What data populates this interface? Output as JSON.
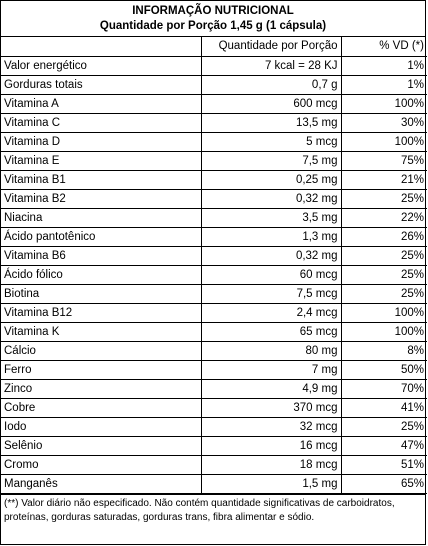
{
  "header": {
    "title": "INFORMAÇÃO NUTRICIONAL",
    "subtitle": "Quantidade por Porção 1,45 g (1 cápsula)"
  },
  "columns": [
    "",
    "Quantidade por Porção",
    "% VD (*)"
  ],
  "rows": [
    {
      "name": "Valor energético",
      "qty": "7 kcal = 28 KJ",
      "vd": "1%"
    },
    {
      "name": "Gorduras totais",
      "qty": "0,7 g",
      "vd": "1%"
    },
    {
      "name": "Vitamina A",
      "qty": "600 mcg",
      "vd": "100%"
    },
    {
      "name": "Vitamina C",
      "qty": "13,5 mg",
      "vd": "30%"
    },
    {
      "name": "Vitamina D",
      "qty": "5 mcg",
      "vd": "100%"
    },
    {
      "name": "Vitamina E",
      "qty": "7,5 mg",
      "vd": "75%"
    },
    {
      "name": "Vitamina B1",
      "qty": "0,25 mg",
      "vd": "21%"
    },
    {
      "name": "Vitamina B2",
      "qty": "0,32 mg",
      "vd": "25%"
    },
    {
      "name": "Niacina",
      "qty": "3,5 mg",
      "vd": "22%"
    },
    {
      "name": "Ácido pantotênico",
      "qty": "1,3 mg",
      "vd": "26%"
    },
    {
      "name": "Vitamina B6",
      "qty": "0,32 mg",
      "vd": "25%"
    },
    {
      "name": "Ácido fólico",
      "qty": "60 mcg",
      "vd": "25%"
    },
    {
      "name": "Biotina",
      "qty": "7,5 mcg",
      "vd": "25%"
    },
    {
      "name": "Vitamina B12",
      "qty": "2,4 mcg",
      "vd": "100%"
    },
    {
      "name": "Vitamina K",
      "qty": "65 mcg",
      "vd": "100%"
    },
    {
      "name": "Cálcio",
      "qty": "80 mg",
      "vd": "8%"
    },
    {
      "name": "Ferro",
      "qty": "7 mg",
      "vd": "50%"
    },
    {
      "name": "Zinco",
      "qty": "4,9 mg",
      "vd": "70%"
    },
    {
      "name": "Cobre",
      "qty": "370 mcg",
      "vd": "41%"
    },
    {
      "name": "Iodo",
      "qty": "32 mcg",
      "vd": "25%"
    },
    {
      "name": "Selênio",
      "qty": "16 mcg",
      "vd": "47%"
    },
    {
      "name": "Cromo",
      "qty": "18 mcg",
      "vd": "51%"
    },
    {
      "name": "Manganês",
      "qty": "1,5 mg",
      "vd": "65%"
    }
  ],
  "footnote": "(**) Valor diário não especificado. Não contém quantidade significativas de carboidratos, proteínas, gorduras saturadas, gorduras trans, fibra alimentar e sódio."
}
